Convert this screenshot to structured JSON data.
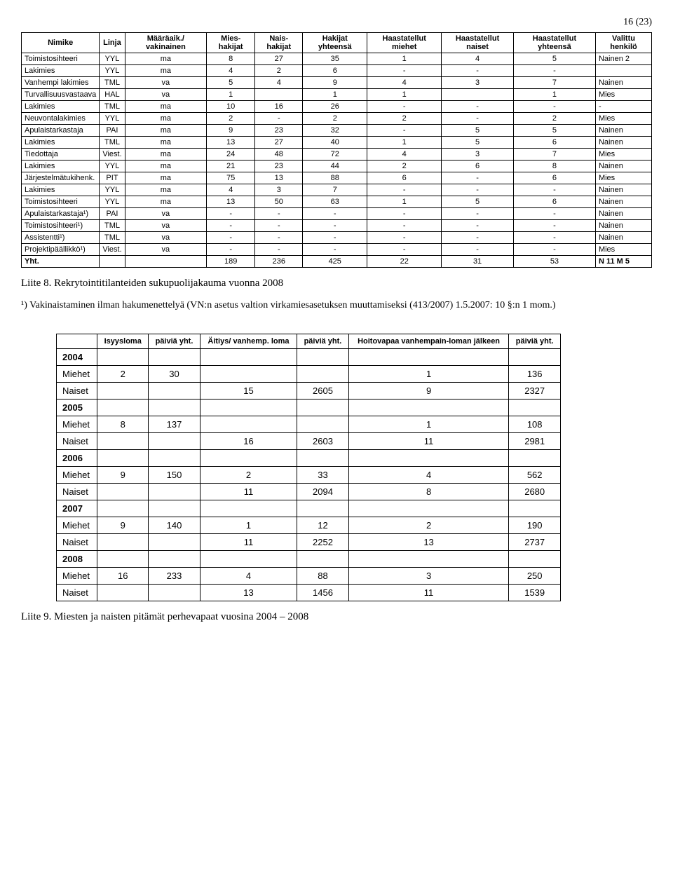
{
  "page_number": "16 (23)",
  "table1": {
    "headers": [
      "Nimike",
      "Linja",
      "Määräaik./ vakinainen",
      "Mies-hakijat",
      "Nais-hakijat",
      "Hakijat yhteensä",
      "Haastatellut miehet",
      "Haastatellut naiset",
      "Haastatellut yhteensä",
      "Valittu henkilö"
    ],
    "rows": [
      [
        "Toimistosihteeri",
        "YYL",
        "ma",
        "8",
        "27",
        "35",
        "1",
        "4",
        "5",
        "Nainen 2"
      ],
      [
        "Lakimies",
        "YYL",
        "ma",
        "4",
        "2",
        "6",
        "-",
        "-",
        "-",
        ""
      ],
      [
        "Vanhempi lakimies",
        "TML",
        "va",
        "5",
        "4",
        "9",
        "4",
        "3",
        "7",
        "Nainen"
      ],
      [
        "Turvallisuusvastaava",
        "HAL",
        "va",
        "1",
        "",
        "1",
        "1",
        "",
        "1",
        "Mies"
      ],
      [
        "Lakimies",
        "TML",
        "ma",
        "10",
        "16",
        "26",
        "-",
        "-",
        "-",
        "-"
      ],
      [
        "Neuvontalakimies",
        "YYL",
        "ma",
        "2",
        "-",
        "2",
        "2",
        "-",
        "2",
        "Mies"
      ],
      [
        "Apulaistarkastaja",
        "PAI",
        "ma",
        "9",
        "23",
        "32",
        "-",
        "5",
        "5",
        "Nainen"
      ],
      [
        "Lakimies",
        "TML",
        "ma",
        "13",
        "27",
        "40",
        "1",
        "5",
        "6",
        "Nainen"
      ],
      [
        "Tiedottaja",
        "Viest.",
        "ma",
        "24",
        "48",
        "72",
        "4",
        "3",
        "7",
        "Mies"
      ],
      [
        "Lakimies",
        "YYL",
        "ma",
        "21",
        "23",
        "44",
        "2",
        "6",
        "8",
        "Nainen"
      ],
      [
        "Järjestelmätukihenk.",
        "PIT",
        "ma",
        "75",
        "13",
        "88",
        "6",
        "-",
        "6",
        "Mies"
      ],
      [
        "Lakimies",
        "YYL",
        "ma",
        "4",
        "3",
        "7",
        "-",
        "-",
        "-",
        "Nainen"
      ],
      [
        "Toimistosihteeri",
        "YYL",
        "ma",
        "13",
        "50",
        "63",
        "1",
        "5",
        "6",
        "Nainen"
      ],
      [
        "Apulaistarkastaja¹)",
        "PAI",
        "va",
        "-",
        "-",
        "-",
        "-",
        "-",
        "-",
        "Nainen"
      ],
      [
        "Toimistosihteeri¹)",
        "TML",
        "va",
        "-",
        "-",
        "-",
        "-",
        "-",
        "-",
        "Nainen"
      ],
      [
        "Assistentti¹)",
        "TML",
        "va",
        "-",
        "-",
        "-",
        "-",
        "-",
        "-",
        "Nainen"
      ],
      [
        "Projektipäällikkö¹)",
        "Viest.",
        "va",
        "-",
        "-",
        "-",
        "-",
        "-",
        "-",
        "Mies"
      ]
    ],
    "total_row": [
      "Yht.",
      "",
      "",
      "189",
      "236",
      "425",
      "22",
      "31",
      "53",
      "N  11   M  5"
    ]
  },
  "caption1": "Liite 8. Rekrytointitilanteiden sukupuolijakauma vuonna 2008",
  "footnote": "¹) Vakinaistaminen ilman hakumenettelyä (VN:n asetus valtion virkamiesasetuksen muuttamiseksi (413/2007) 1.5.2007: 10 §:n 1 mom.)",
  "table2": {
    "headers": [
      "",
      "Isyysloma",
      "päiviä yht.",
      "Äitiys/ vanhemp. loma",
      "päiviä yht.",
      "Hoitovapaa vanhempain-loman jälkeen",
      "päiviä yht."
    ],
    "groups": [
      {
        "year": "2004",
        "rows": [
          [
            "Miehet",
            "2",
            "30",
            "",
            "",
            "1",
            "136"
          ],
          [
            "Naiset",
            "",
            "",
            "15",
            "2605",
            "9",
            "2327"
          ]
        ]
      },
      {
        "year": "2005",
        "rows": [
          [
            "Miehet",
            "8",
            "137",
            "",
            "",
            "1",
            "108"
          ],
          [
            "Naiset",
            "",
            "",
            "16",
            "2603",
            "11",
            "2981"
          ]
        ]
      },
      {
        "year": "2006",
        "rows": [
          [
            "Miehet",
            "9",
            "150",
            "2",
            "33",
            "4",
            "562"
          ],
          [
            "Naiset",
            "",
            "",
            "11",
            "2094",
            "8",
            "2680"
          ]
        ]
      },
      {
        "year": "2007",
        "rows": [
          [
            "Miehet",
            "9",
            "140",
            "1",
            "12",
            "2",
            "190"
          ],
          [
            "Naiset",
            "",
            "",
            "11",
            "2252",
            "13",
            "2737"
          ]
        ]
      },
      {
        "year": "2008",
        "rows": [
          [
            "Miehet",
            "16",
            "233",
            "4",
            "88",
            "3",
            "250"
          ],
          [
            "Naiset",
            "",
            "",
            "13",
            "1456",
            "11",
            "1539"
          ]
        ]
      }
    ]
  },
  "caption2": "Liite 9. Miesten ja naisten pitämät perhevapaat vuosina 2004 – 2008"
}
